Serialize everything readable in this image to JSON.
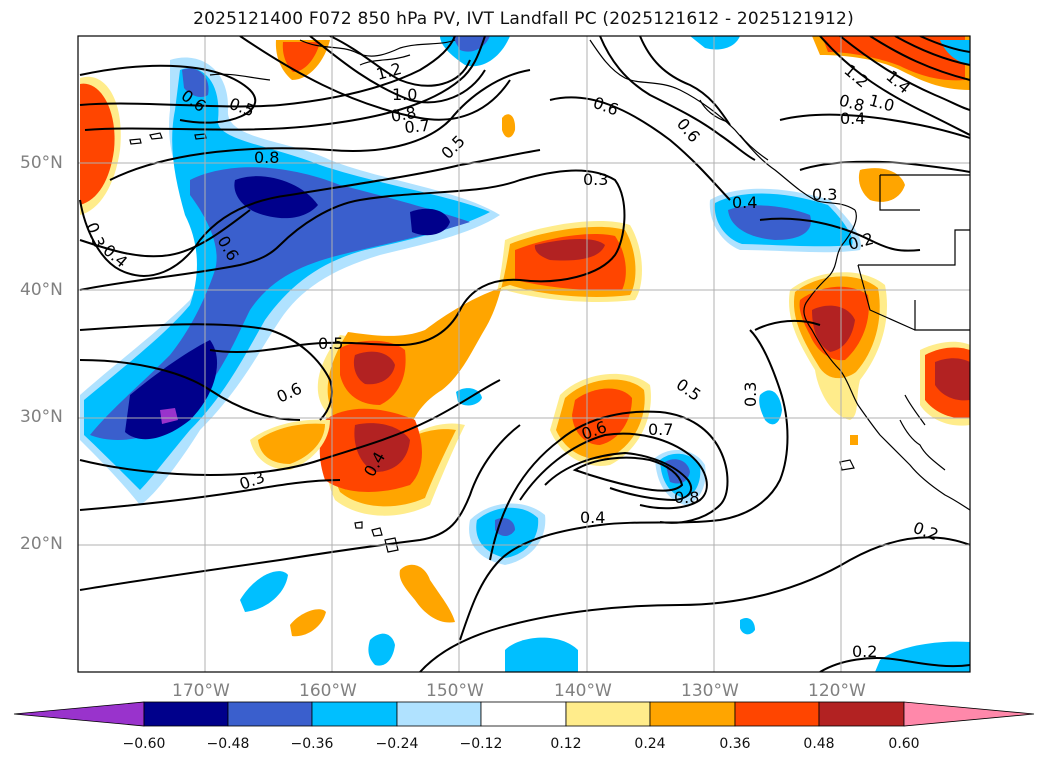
{
  "title": "2025121400 F072 850 hPa PV, IVT Landfall PC (2025121612 - 2025121912)",
  "latitudes": [
    "50°N",
    "40°N",
    "30°N",
    "20°N"
  ],
  "longitudes": [
    "170°W",
    "160°W",
    "150°W",
    "140°W",
    "130°W",
    "120°W"
  ],
  "colorbar": {
    "ticks": [
      "−0.60",
      "−0.48",
      "−0.36",
      "−0.24",
      "−0.12",
      "0.12",
      "0.24",
      "0.36",
      "0.48",
      "0.60"
    ],
    "colors": [
      "#9933cc",
      "#00008b",
      "#3a5fcd",
      "#00bfff",
      "#b0e2ff",
      "#ffffff",
      "#ffec8b",
      "#ffa500",
      "#ff4500",
      "#b22222",
      "#ff88aa"
    ]
  },
  "contour_labels": [
    "0.6",
    "0.5",
    "1.2",
    "1.0",
    "0.8",
    "0.7",
    "0.5",
    "0.3",
    "0.6",
    "0.8",
    "0.6",
    "0.3",
    "0.4",
    "0.3",
    "0.2",
    "0.4",
    "0.6",
    "0.8",
    "1.0",
    "1.2",
    "1.4",
    "0.4",
    "0.5",
    "0.6",
    "0.3",
    "0.5",
    "0.6",
    "0.7",
    "0.8",
    "0.4",
    "0.3",
    "0.4",
    "0.2",
    "0.2"
  ],
  "colors": {
    "grid": "#b0b0b0",
    "land": "#ffffff",
    "coast": "#000000"
  }
}
